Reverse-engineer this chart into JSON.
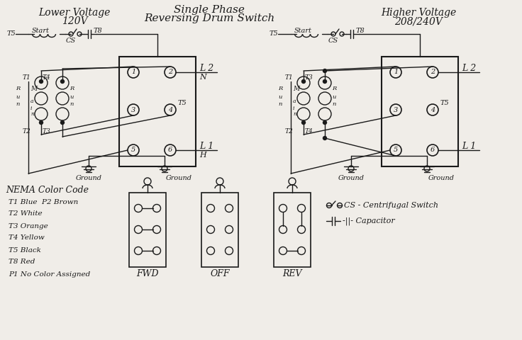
{
  "bg_color": "#f0ede8",
  "line_color": "#1a1a1a",
  "title_center_1": "Single Phase",
  "title_center_2": "Reversing Drum Switch",
  "title_left_1": "Lower Voltage",
  "title_left_2": "120V",
  "title_right_1": "Higher Voltage",
  "title_right_2": "208/240V",
  "nema_title": "NEMA Color Code",
  "nema_lines": [
    "T1 Blue  P2 Brown",
    "T2 White",
    "T3 Orange",
    "T4 Yellow",
    "T5 Black",
    "T8 Red",
    "P1 No Color Assigned"
  ],
  "legend_cs": "CS - Centrifugal Switch",
  "legend_cap": "-||- Capacitor",
  "fwd_label": "FWD",
  "off_label": "OFF",
  "rev_label": "REV"
}
